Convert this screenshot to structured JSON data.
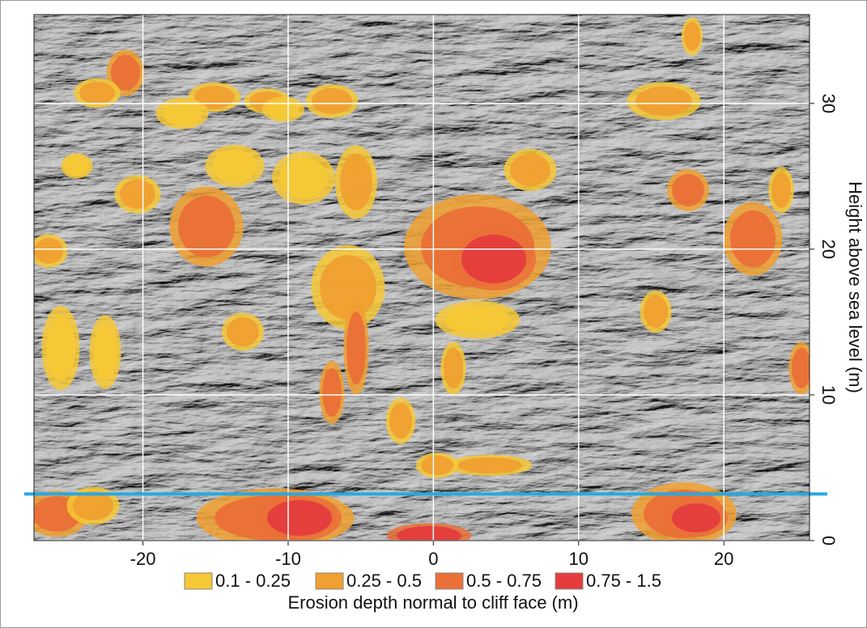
{
  "chart_data": {
    "type": "image",
    "xlim": [
      -27.5,
      25.9
    ],
    "ylim": [
      0,
      36.1
    ],
    "xticks": [
      -20,
      -10,
      0,
      10,
      20
    ],
    "yticks": [
      0,
      10,
      20,
      30
    ],
    "grid": true,
    "ylabel": "Height above sea level (m)",
    "hline": {
      "y": 3.2,
      "color": "#29a8e0"
    },
    "legend": {
      "title": "Erosion depth normal to cliff face (m)",
      "classes": [
        {
          "label": "0.1 - 0.25",
          "color": "#f6c836"
        },
        {
          "label": "0.25 - 0.5",
          "color": "#f0a030"
        },
        {
          "label": "0.5 - 0.75",
          "color": "#ea7038"
        },
        {
          "label": "0.75 - 1.5",
          "color": "#e43c3c"
        }
      ]
    }
  }
}
